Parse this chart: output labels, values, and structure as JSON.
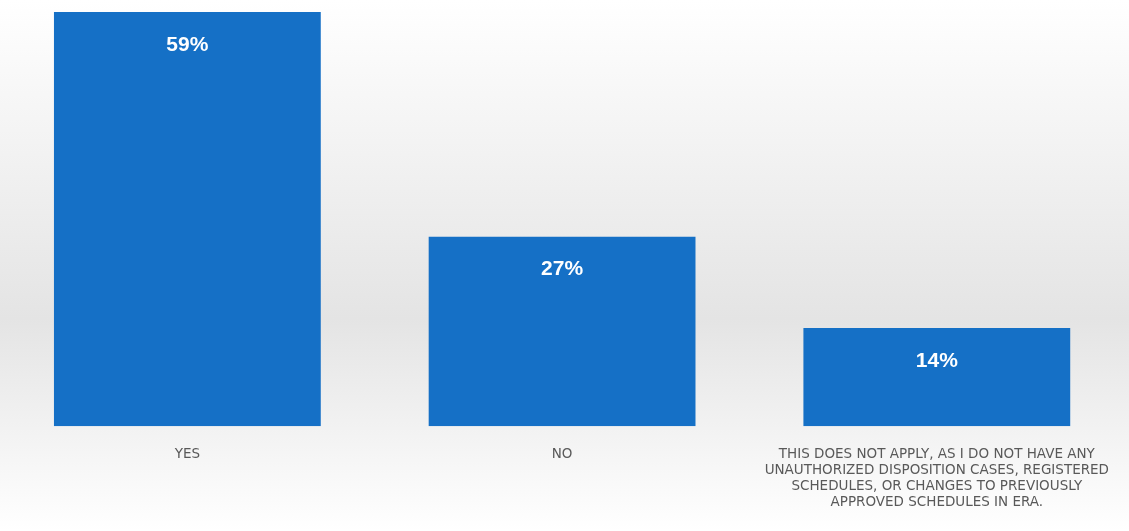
{
  "chart_data": {
    "type": "bar",
    "categories": [
      "YES",
      "NO",
      "THIS DOES NOT APPLY, AS I DO NOT HAVE ANY UNAUTHORIZED DISPOSITION CASES, REGISTERED SCHEDULES, OR CHANGES TO PREVIOUSLY APPROVED SCHEDULES IN ERA."
    ],
    "values": [
      59,
      27,
      14
    ],
    "value_labels": [
      "59%",
      "27%",
      "14%"
    ],
    "color": "#1570c6",
    "grid": false,
    "legend": false
  }
}
